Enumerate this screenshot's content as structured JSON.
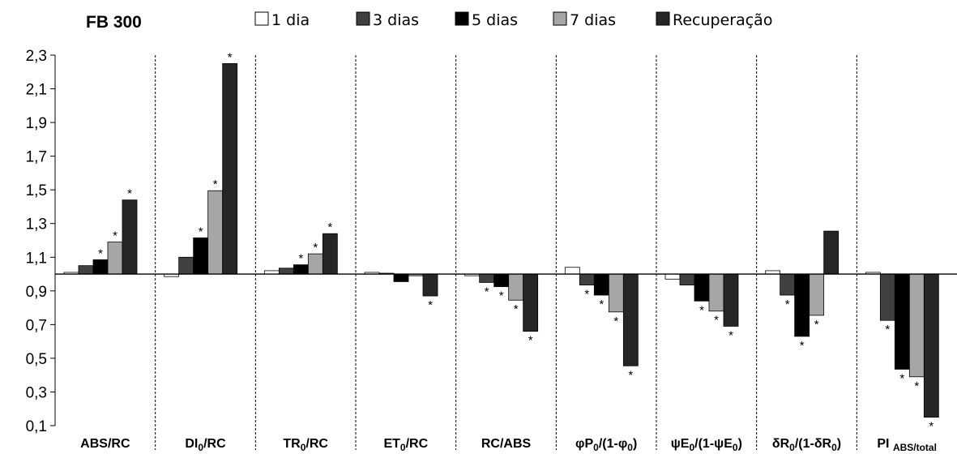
{
  "chart_data": {
    "type": "bar",
    "title": "FB 300",
    "categories": [
      {
        "pre": "ABS/RC",
        "parts": [
          [
            "ABS/RC",
            false
          ]
        ]
      },
      {
        "pre": "DI0/RC",
        "parts": [
          [
            "DI",
            false
          ],
          [
            "0",
            true
          ],
          [
            "/RC",
            false
          ]
        ]
      },
      {
        "pre": "TR0/RC",
        "parts": [
          [
            "TR",
            false
          ],
          [
            "0",
            true
          ],
          [
            "/RC",
            false
          ]
        ]
      },
      {
        "pre": "ET0/RC",
        "parts": [
          [
            "ET",
            false
          ],
          [
            "0",
            true
          ],
          [
            "/RC",
            false
          ]
        ]
      },
      {
        "pre": "RC/ABS",
        "parts": [
          [
            "RC/ABS",
            false
          ]
        ]
      },
      {
        "pre": "φP0/(1-φ0)",
        "parts": [
          [
            "φP",
            false
          ],
          [
            "0",
            true
          ],
          [
            "/(1-φ",
            false
          ],
          [
            "0",
            true
          ],
          [
            ")",
            false
          ]
        ]
      },
      {
        "pre": "ψE0/(1-ψE0)",
        "parts": [
          [
            "ψE",
            false
          ],
          [
            "0",
            true
          ],
          [
            "/(1-ψE",
            false
          ],
          [
            "0",
            true
          ],
          [
            ")",
            false
          ]
        ]
      },
      {
        "pre": "δR0/(1-δR0)",
        "parts": [
          [
            "δR",
            false
          ],
          [
            "0",
            true
          ],
          [
            "/(1-δR",
            false
          ],
          [
            "0",
            true
          ],
          [
            ")",
            false
          ]
        ]
      },
      {
        "pre": "PI ABS/total",
        "parts": [
          [
            "PI ",
            false
          ],
          [
            "ABS/total",
            true
          ]
        ]
      }
    ],
    "series": [
      {
        "name": "1 dia",
        "color": "#ffffff",
        "values": [
          1.01,
          0.985,
          1.02,
          1.01,
          0.99,
          1.04,
          0.97,
          1.02,
          1.01
        ],
        "significant": [
          false,
          false,
          false,
          false,
          false,
          false,
          false,
          false,
          false
        ]
      },
      {
        "name": "3 dias",
        "color": "#404040",
        "values": [
          1.05,
          1.1,
          1.035,
          1.005,
          0.95,
          0.935,
          0.935,
          0.875,
          0.725
        ],
        "significant": [
          false,
          false,
          false,
          false,
          true,
          true,
          false,
          true,
          true
        ]
      },
      {
        "name": "5 dias",
        "color": "#000000",
        "values": [
          1.085,
          1.215,
          1.055,
          0.955,
          0.925,
          0.875,
          0.84,
          0.63,
          0.435
        ],
        "significant": [
          true,
          true,
          true,
          false,
          true,
          true,
          true,
          true,
          true
        ]
      },
      {
        "name": "7 dias",
        "color": "#a6a6a6",
        "values": [
          1.19,
          1.495,
          1.12,
          0.99,
          0.845,
          0.775,
          0.78,
          0.755,
          0.39
        ],
        "significant": [
          true,
          true,
          true,
          false,
          true,
          true,
          true,
          true,
          true
        ]
      },
      {
        "name": "Recuperação",
        "color": "#262626",
        "values": [
          1.44,
          2.25,
          1.24,
          0.87,
          0.66,
          0.455,
          0.69,
          1.255,
          0.15
        ],
        "significant": [
          true,
          true,
          true,
          true,
          true,
          true,
          true,
          false,
          true
        ]
      }
    ],
    "significance_marker": "*",
    "baseline": 1.0,
    "ylim": [
      0.1,
      2.3
    ],
    "yticks": [
      "0,1",
      "0,3",
      "0,5",
      "0,7",
      "0,9",
      "1,1",
      "1,3",
      "1,5",
      "1,7",
      "1,9",
      "2,1",
      "2,3"
    ],
    "ytick_values": [
      0.1,
      0.3,
      0.5,
      0.7,
      0.9,
      1.1,
      1.3,
      1.5,
      1.7,
      1.9,
      2.1,
      2.3
    ],
    "xlabel": "",
    "ylabel": "",
    "grid": false,
    "legend_position": "top"
  }
}
